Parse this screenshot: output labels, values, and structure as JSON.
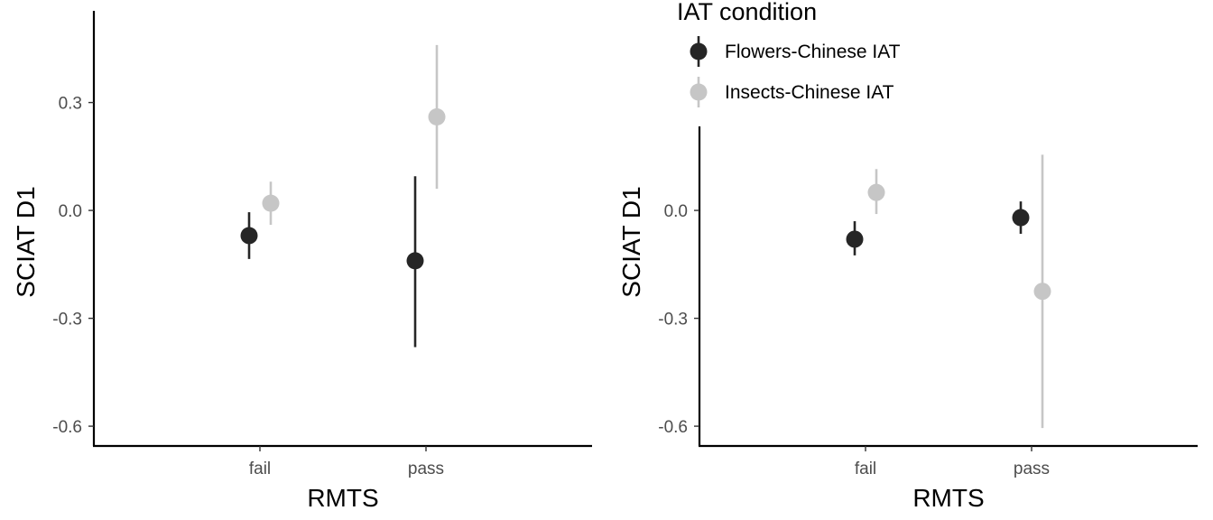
{
  "chart_data": [
    {
      "type": "scatter",
      "title": "",
      "xlabel": "RMTS",
      "ylabel": "SCIAT D1",
      "categories": [
        "fail",
        "pass"
      ],
      "yticks": [
        "-0.6",
        "-0.3",
        "0.0",
        "0.3"
      ],
      "ytick_values": [
        -0.6,
        -0.3,
        0.0,
        0.3
      ],
      "ylim": [
        -0.655,
        0.555
      ],
      "series": [
        {
          "name": "Flowers-Chinese IAT",
          "color": "#262626",
          "points": [
            {
              "category": "fail",
              "value": -0.07,
              "lower": -0.135,
              "upper": -0.005
            },
            {
              "category": "pass",
              "value": -0.14,
              "lower": -0.38,
              "upper": 0.095
            }
          ]
        },
        {
          "name": "Insects-Chinese IAT",
          "color": "#c6c6c6",
          "points": [
            {
              "category": "fail",
              "value": 0.02,
              "lower": -0.04,
              "upper": 0.08
            },
            {
              "category": "pass",
              "value": 0.26,
              "lower": 0.06,
              "upper": 0.46
            }
          ]
        }
      ]
    },
    {
      "type": "scatter",
      "title": "",
      "xlabel": "RMTS",
      "ylabel": "SCIAT D1",
      "categories": [
        "fail",
        "pass"
      ],
      "yticks": [
        "-0.6",
        "-0.3",
        "0.0",
        "0.3"
      ],
      "ytick_values": [
        -0.6,
        -0.3,
        0.0,
        0.3
      ],
      "ylim": [
        -0.655,
        0.555
      ],
      "series": [
        {
          "name": "Flowers-Chinese IAT",
          "color": "#262626",
          "points": [
            {
              "category": "fail",
              "value": -0.08,
              "lower": -0.125,
              "upper": -0.03
            },
            {
              "category": "pass",
              "value": -0.02,
              "lower": -0.065,
              "upper": 0.025
            }
          ]
        },
        {
          "name": "Insects-Chinese IAT",
          "color": "#c6c6c6",
          "points": [
            {
              "category": "fail",
              "value": 0.05,
              "lower": -0.01,
              "upper": 0.115
            },
            {
              "category": "pass",
              "value": -0.225,
              "lower": -0.605,
              "upper": 0.155
            }
          ]
        }
      ]
    }
  ],
  "legend": {
    "title": "IAT condition",
    "items": [
      {
        "label": "Flowers-Chinese IAT",
        "color": "#262626"
      },
      {
        "label": "Insects-Chinese IAT",
        "color": "#c6c6c6"
      }
    ]
  }
}
